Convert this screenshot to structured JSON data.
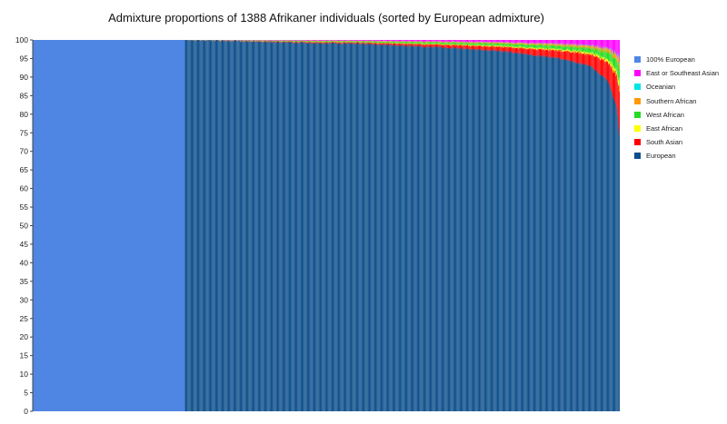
{
  "chart_data": {
    "type": "bar",
    "subtype": "stacked-100-percent-individuals",
    "title": "Admixture proportions of 1388 Afrikaner individuals (sorted by European admixture)",
    "xlabel": "",
    "ylabel": "",
    "n_individuals": 1388,
    "n_100pct_european": 360,
    "ylim": [
      0,
      100
    ],
    "yticks": [
      0,
      5,
      10,
      15,
      20,
      25,
      30,
      35,
      40,
      45,
      50,
      55,
      60,
      65,
      70,
      75,
      80,
      85,
      90,
      95,
      100
    ],
    "legend_position": "right",
    "grid": false,
    "legend": [
      {
        "name": "100% European",
        "color": "#4f86e3"
      },
      {
        "name": "East or Southeast Asian",
        "color": "#ff00ff"
      },
      {
        "name": "Oceanian",
        "color": "#00e5e5"
      },
      {
        "name": "Southern African",
        "color": "#ff9900"
      },
      {
        "name": "West African",
        "color": "#22dd22"
      },
      {
        "name": "East African",
        "color": "#ffff00"
      },
      {
        "name": "South Asian",
        "color": "#ff0000"
      },
      {
        "name": "European",
        "color": "#0d4f8b"
      }
    ],
    "european_admixture_curve": [
      {
        "percentile_of_individuals": 0,
        "european": 100
      },
      {
        "percentile_of_individuals": 26,
        "european": 100
      },
      {
        "percentile_of_individuals": 40,
        "european": 99.5
      },
      {
        "percentile_of_individuals": 55,
        "european": 99
      },
      {
        "percentile_of_individuals": 70,
        "european": 98
      },
      {
        "percentile_of_individuals": 80,
        "european": 97
      },
      {
        "percentile_of_individuals": 90,
        "european": 95
      },
      {
        "percentile_of_individuals": 95,
        "european": 93
      },
      {
        "percentile_of_individuals": 98,
        "european": 89
      },
      {
        "percentile_of_individuals": 99.5,
        "european": 82
      },
      {
        "percentile_of_individuals": 100,
        "european": 74
      }
    ]
  }
}
